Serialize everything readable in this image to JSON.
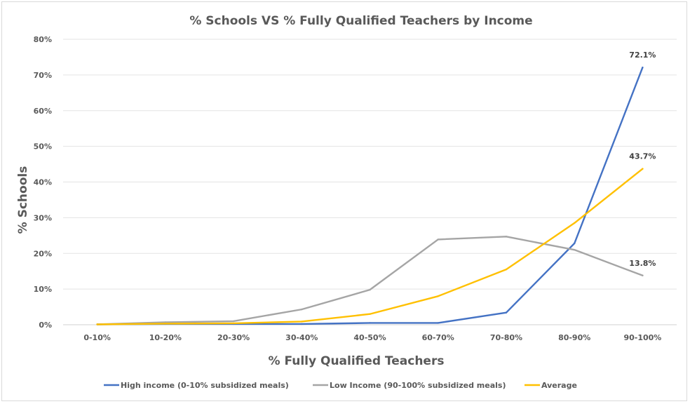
{
  "chart_data": {
    "type": "line",
    "title": "% Schools VS % Fully Qualified Teachers by Income",
    "xlabel": "% Fully Qualified Teachers",
    "ylabel": "% Schools",
    "categories": [
      "0-10%",
      "10-20%",
      "20-30%",
      "30-40%",
      "40-50%",
      "60-70%",
      "70-80%",
      "80-90%",
      "90-100%"
    ],
    "ylim": [
      0,
      80
    ],
    "yticks": [
      0,
      10,
      20,
      30,
      40,
      50,
      60,
      70,
      80
    ],
    "ytick_labels": [
      "0%",
      "10%",
      "20%",
      "30%",
      "40%",
      "50%",
      "60%",
      "70%",
      "80%"
    ],
    "grid": true,
    "legend_position": "bottom",
    "series": [
      {
        "name": "High income (0-10% subsidized meals)",
        "color": "#4472c4",
        "values": [
          0.1,
          0.2,
          0.2,
          0.2,
          0.5,
          0.5,
          3.4,
          22.8,
          72.1
        ],
        "data_labels": [
          "",
          "",
          "",
          "",
          "",
          "",
          "",
          "",
          "72.1%"
        ]
      },
      {
        "name": "Low Income (90-100% subsidized meals)",
        "color": "#a5a5a5",
        "values": [
          0.1,
          0.7,
          1.0,
          4.3,
          9.8,
          23.9,
          24.7,
          21.0,
          13.8
        ],
        "data_labels": [
          "",
          "",
          "",
          "",
          "",
          "",
          "",
          "",
          "13.8%"
        ]
      },
      {
        "name": "Average",
        "color": "#ffc000",
        "values": [
          0.1,
          0.3,
          0.4,
          0.9,
          3.0,
          8.0,
          15.5,
          28.5,
          43.7
        ],
        "data_labels": [
          "",
          "",
          "",
          "",
          "",
          "",
          "",
          "",
          "43.7%"
        ]
      }
    ]
  }
}
